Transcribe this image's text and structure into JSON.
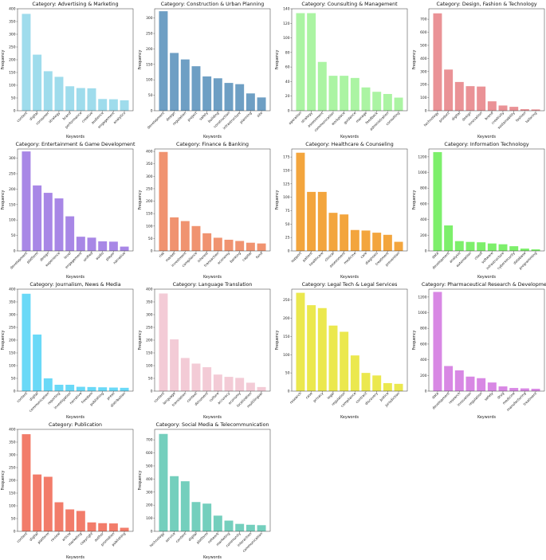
{
  "title_prefix": "Category: ",
  "x_axis_label": "Keywords",
  "y_axis_label": "Frequency",
  "chart_data": [
    {
      "type": "bar",
      "title": "Advertising & Marketing",
      "color": "#9fdcec",
      "categories": [
        "content",
        "digital",
        "consumer",
        "strategy",
        "brand",
        "performance",
        "creative",
        "audience",
        "engagement",
        "analytics"
      ],
      "values": [
        380,
        220,
        155,
        133,
        96,
        89,
        88,
        46,
        45,
        41
      ],
      "ylim": [
        0,
        400
      ],
      "yticks": [
        0,
        50,
        100,
        150,
        200,
        250,
        300,
        350,
        400
      ]
    },
    {
      "type": "bar",
      "title": "Construction & Urban Planning",
      "color": "#6e9fc4",
      "categories": [
        "development",
        "design",
        "regulation",
        "project",
        "safety",
        "building",
        "construction",
        "infrastructure",
        "planning",
        "site"
      ],
      "values": [
        322,
        187,
        166,
        144,
        111,
        105,
        90,
        86,
        56,
        43
      ],
      "ylim": [
        0,
        330
      ],
      "yticks": [
        0,
        50,
        100,
        150,
        200,
        250,
        300
      ]
    },
    {
      "type": "bar",
      "title": "Counsulting & Management",
      "color": "#abf4a3",
      "categories": [
        "operation",
        "strategy",
        "assessment",
        "communication",
        "workplace",
        "guidance",
        "manage",
        "feedback",
        "administration",
        "consulting"
      ],
      "values": [
        134,
        134,
        67,
        48,
        48,
        45,
        32,
        26,
        23,
        18
      ],
      "ylim": [
        0,
        140
      ],
      "yticks": [
        0,
        20,
        40,
        60,
        80,
        100,
        120,
        140
      ]
    },
    {
      "type": "bar",
      "title": "Design, Fashion & Technology",
      "color": "#ea9296",
      "categories": [
        "technology",
        "product",
        "digital",
        "design",
        "innovation",
        "brand",
        "creativity",
        "sustainability",
        "fashion",
        "tailoring"
      ],
      "values": [
        745,
        315,
        220,
        188,
        185,
        72,
        40,
        30,
        12,
        10
      ],
      "ylim": [
        0,
        780
      ],
      "yticks": [
        0,
        100,
        200,
        300,
        400,
        500,
        600,
        700
      ]
    },
    {
      "type": "bar",
      "title": "Entertainment & Game Development",
      "color": "#a887e6",
      "categories": [
        "development",
        "platform",
        "design",
        "experience",
        "level",
        "engagement",
        "unified",
        "audio",
        "player",
        "narrative"
      ],
      "values": [
        322,
        212,
        188,
        170,
        112,
        46,
        43,
        31,
        30,
        14
      ],
      "ylim": [
        0,
        330
      ],
      "yticks": [
        0,
        50,
        100,
        150,
        200,
        250,
        300
      ]
    },
    {
      "type": "bar",
      "title": "Finance & Banking",
      "color": "#f09370",
      "categories": [
        "risk",
        "market",
        "investment",
        "compliance",
        "interest",
        "transaction",
        "economy",
        "banking",
        "capital",
        "fund"
      ],
      "values": [
        398,
        135,
        120,
        100,
        71,
        53,
        45,
        40,
        33,
        30
      ],
      "ylim": [
        0,
        410
      ],
      "yticks": [
        0,
        50,
        100,
        150,
        200,
        250,
        300,
        350,
        400
      ]
    },
    {
      "type": "bar",
      "title": "Healthcare & Counseling",
      "color": "#f3a53d",
      "categories": [
        "support",
        "patient",
        "healthcare",
        "clinical",
        "assessment",
        "medicine",
        "care",
        "diagnosis",
        "treatment",
        "prevention"
      ],
      "values": [
        183,
        110,
        110,
        71,
        68,
        39,
        38,
        34,
        30,
        17
      ],
      "ylim": [
        0,
        190
      ],
      "yticks": [
        0,
        25,
        50,
        75,
        100,
        125,
        150,
        175
      ]
    },
    {
      "type": "bar",
      "title": "Information Technology",
      "color": "#7def6b",
      "categories": [
        "data",
        "development",
        "analysis",
        "automation",
        "cloud",
        "software",
        "infrastructure",
        "cybersecurity",
        "database",
        "programming"
      ],
      "values": [
        1260,
        325,
        125,
        115,
        110,
        95,
        85,
        60,
        30,
        20
      ],
      "ylim": [
        0,
        1300
      ],
      "yticks": [
        0,
        200,
        400,
        600,
        800,
        1000,
        1200
      ]
    },
    {
      "type": "bar",
      "title": "Journalism, News & Media",
      "color": "#6ad9f7",
      "categories": [
        "content",
        "digital",
        "communication",
        "reporting",
        "investigation",
        "narrative",
        "freedom",
        "publishing",
        "press",
        "distribution"
      ],
      "values": [
        382,
        222,
        50,
        25,
        25,
        17,
        16,
        15,
        14,
        13
      ],
      "ylim": [
        0,
        400
      ],
      "yticks": [
        0,
        50,
        100,
        150,
        200,
        250,
        300,
        350,
        400
      ]
    },
    {
      "type": "bar",
      "title": "Language Translation",
      "color": "#f3cbd6",
      "categories": [
        "content",
        "language",
        "translation",
        "context",
        "document",
        "culture",
        "accuracy",
        "economy",
        "localization",
        "multilingual"
      ],
      "values": [
        383,
        203,
        130,
        108,
        94,
        65,
        56,
        52,
        33,
        16
      ],
      "ylim": [
        0,
        400
      ],
      "yticks": [
        0,
        50,
        100,
        150,
        200,
        250,
        300,
        350,
        400
      ]
    },
    {
      "type": "bar",
      "title": "Legal Tech & Legal Services",
      "color": "#ebe84e",
      "categories": [
        "research",
        "case",
        "privacy",
        "legal",
        "regulation",
        "compliance",
        "contract",
        "discovery",
        "justice",
        "jurisdiction"
      ],
      "values": [
        270,
        236,
        228,
        180,
        163,
        98,
        50,
        43,
        22,
        20
      ],
      "ylim": [
        0,
        280
      ],
      "yticks": [
        0,
        50,
        100,
        150,
        200,
        250
      ]
    },
    {
      "type": "bar",
      "title": "Pharmaceutical Research & Development",
      "color": "#d888e4",
      "categories": [
        "data",
        "development",
        "research",
        "innovation",
        "regulation",
        "safety",
        "drug",
        "medicine",
        "manufacturing",
        "treatment"
      ],
      "values": [
        1265,
        320,
        265,
        185,
        165,
        110,
        60,
        40,
        35,
        30
      ],
      "ylim": [
        0,
        1300
      ],
      "yticks": [
        0,
        200,
        400,
        600,
        800,
        1000,
        1200
      ]
    },
    {
      "type": "bar",
      "title": "Publication",
      "color": "#f27c6a",
      "categories": [
        "content",
        "digital",
        "platform",
        "review",
        "article",
        "marketing",
        "copyright",
        "author",
        "promotion",
        "publishing"
      ],
      "values": [
        381,
        223,
        214,
        114,
        86,
        80,
        35,
        32,
        31,
        14
      ],
      "ylim": [
        0,
        400
      ],
      "yticks": [
        0,
        50,
        100,
        150,
        200,
        250,
        300,
        350,
        400
      ]
    },
    {
      "type": "bar",
      "title": "Social Media & Telecommunication",
      "color": "#74cfbd",
      "categories": [
        "technology",
        "service",
        "content",
        "digital",
        "platform",
        "network",
        "marketing",
        "community",
        "interaction",
        "communication"
      ],
      "values": [
        745,
        422,
        383,
        224,
        212,
        120,
        82,
        57,
        50,
        47
      ],
      "ylim": [
        0,
        780
      ],
      "yticks": [
        0,
        100,
        200,
        300,
        400,
        500,
        600,
        700
      ]
    }
  ]
}
